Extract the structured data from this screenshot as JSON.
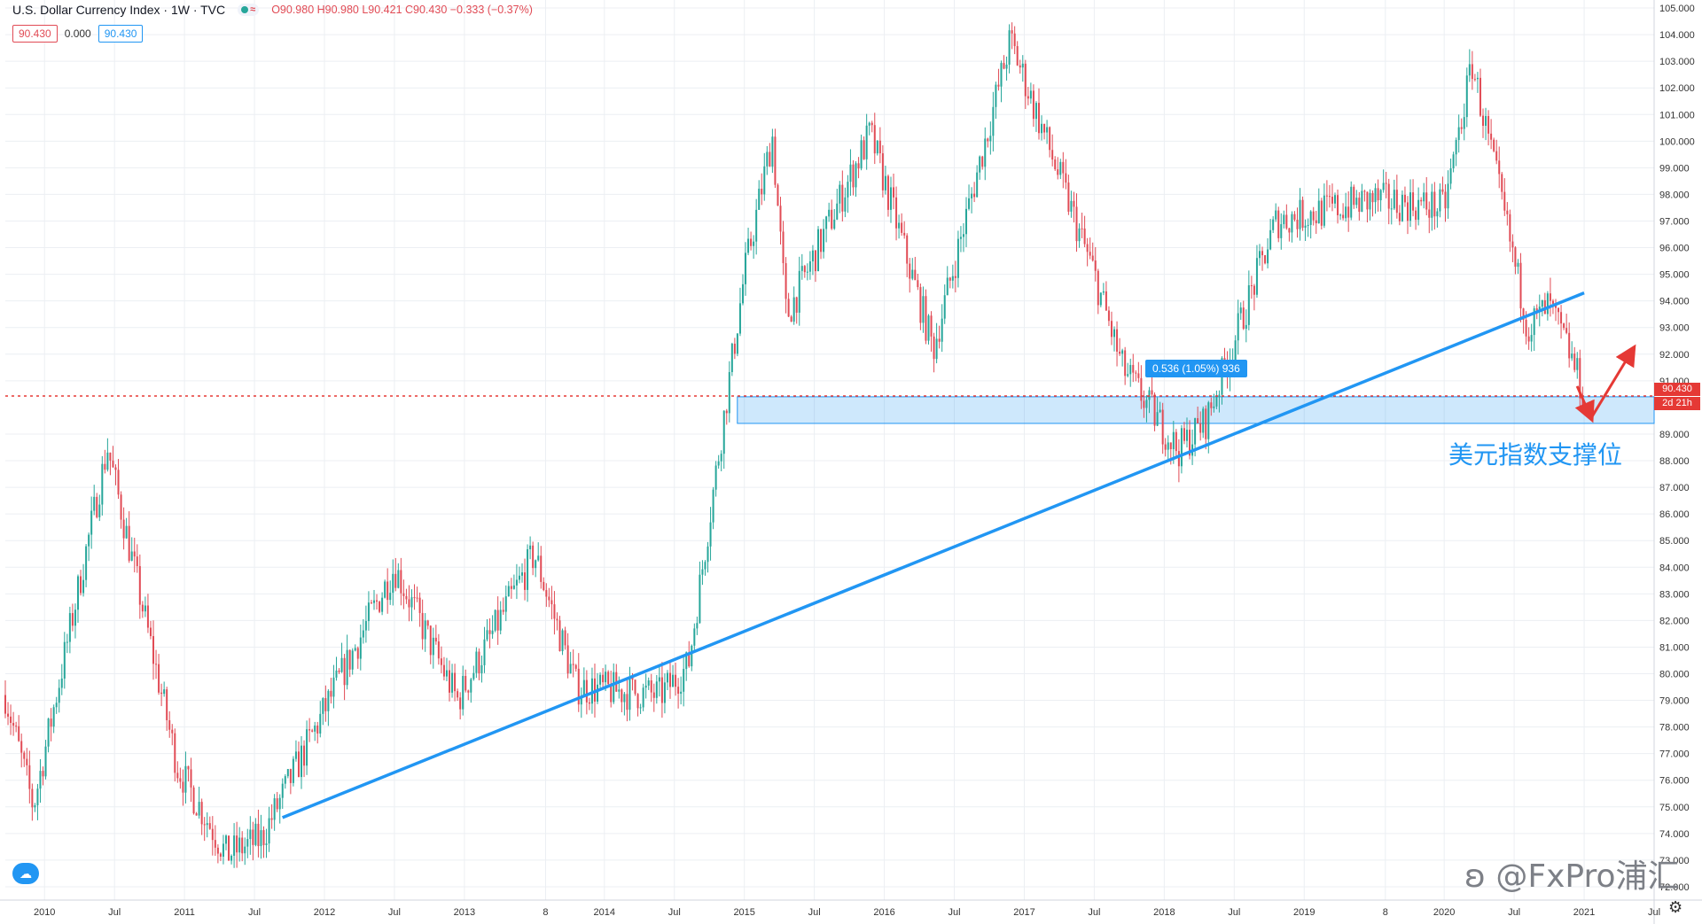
{
  "header": {
    "title": "U.S. Dollar Currency Index · 1W · TVC",
    "ohlc": "O90.980 H90.980 L90.421 C90.430 −0.333 (−0.37%)"
  },
  "values_row": {
    "v1": "90.430",
    "v2": "0.000",
    "v3": "90.430"
  },
  "price_label": "90.430",
  "countdown_label": "2d 21h",
  "measure_tag": "0.536 (1.05%) 936",
  "annotation_text": "美元指数支撑位",
  "watermark": "@FxPro浦汇",
  "colors": {
    "up": "#26a69a",
    "down": "#e14b55",
    "accent": "#2196f3",
    "price_line": "#e53935",
    "grid": "#eceff3"
  },
  "chart_data": {
    "type": "candlestick",
    "title": "U.S. Dollar Currency Index",
    "interval": "1W",
    "source": "TVC",
    "ylim": [
      71.5,
      105.3
    ],
    "y_ticks": [
      "105.000",
      "104.000",
      "103.000",
      "102.000",
      "101.000",
      "100.000",
      "99.000",
      "98.000",
      "97.000",
      "96.000",
      "95.000",
      "94.000",
      "93.000",
      "92.000",
      "91.000",
      "89.000",
      "88.000",
      "87.000",
      "86.000",
      "85.000",
      "84.000",
      "83.000",
      "82.000",
      "81.000",
      "80.000",
      "79.000",
      "78.000",
      "77.000",
      "76.000",
      "75.000",
      "74.000",
      "73.000",
      "72.000"
    ],
    "x_range": [
      2009.72,
      2021.5
    ],
    "x_ticks": [
      {
        "t": 2010.0,
        "label": "2010"
      },
      {
        "t": 2010.5,
        "label": "Jul"
      },
      {
        "t": 2011.0,
        "label": "2011"
      },
      {
        "t": 2011.5,
        "label": "Jul"
      },
      {
        "t": 2012.0,
        "label": "2012"
      },
      {
        "t": 2012.5,
        "label": "Jul"
      },
      {
        "t": 2013.0,
        "label": "2013"
      },
      {
        "t": 2013.58,
        "label": "8"
      },
      {
        "t": 2014.0,
        "label": "2014"
      },
      {
        "t": 2014.5,
        "label": "Jul"
      },
      {
        "t": 2015.0,
        "label": "2015"
      },
      {
        "t": 2015.5,
        "label": "Jul"
      },
      {
        "t": 2016.0,
        "label": "2016"
      },
      {
        "t": 2016.5,
        "label": "Jul"
      },
      {
        "t": 2017.0,
        "label": "2017"
      },
      {
        "t": 2017.5,
        "label": "Jul"
      },
      {
        "t": 2018.0,
        "label": "2018"
      },
      {
        "t": 2018.5,
        "label": "Jul"
      },
      {
        "t": 2019.0,
        "label": "2019"
      },
      {
        "t": 2019.58,
        "label": "8"
      },
      {
        "t": 2020.0,
        "label": "2020"
      },
      {
        "t": 2020.5,
        "label": "Jul"
      },
      {
        "t": 2021.0,
        "label": "2021"
      },
      {
        "t": 2021.5,
        "label": "Jul"
      }
    ],
    "path_points": [
      [
        2009.72,
        79.2
      ],
      [
        2009.92,
        75.0
      ],
      [
        2010.45,
        88.5
      ],
      [
        2010.95,
        76.5
      ],
      [
        2011.3,
        73.2
      ],
      [
        2011.55,
        73.8
      ],
      [
        2012.5,
        84.0
      ],
      [
        2012.95,
        79.0
      ],
      [
        2013.5,
        84.5
      ],
      [
        2013.8,
        79.5
      ],
      [
        2014.4,
        79.2
      ],
      [
        2014.6,
        80.3
      ],
      [
        2015.0,
        95.0
      ],
      [
        2015.2,
        100.2
      ],
      [
        2015.3,
        93.4
      ],
      [
        2015.9,
        100.3
      ],
      [
        2016.35,
        92.2
      ],
      [
        2016.9,
        103.8
      ],
      [
        2017.5,
        95.0
      ],
      [
        2017.7,
        91.5
      ],
      [
        2018.1,
        88.4
      ],
      [
        2018.3,
        89.5
      ],
      [
        2018.8,
        97.0
      ],
      [
        2019.5,
        97.8
      ],
      [
        2020.0,
        97.5
      ],
      [
        2020.2,
        102.9
      ],
      [
        2020.6,
        93.0
      ],
      [
        2020.75,
        93.8
      ],
      [
        2020.9,
        92.0
      ],
      [
        2021.0,
        90.43
      ]
    ],
    "last_close": 90.43,
    "annotations": {
      "trendline": {
        "from": [
          2011.7,
          74.6
        ],
        "to": [
          2021.0,
          94.3
        ]
      },
      "support_zone": {
        "from_t": 2014.95,
        "to_t": 2021.5,
        "low": 89.4,
        "high": 90.4
      },
      "price_line": 90.43,
      "arrows": [
        {
          "from": [
            2020.95,
            90.8
          ],
          "to": [
            2021.05,
            89.6
          ]
        },
        {
          "from": [
            2021.05,
            89.6
          ],
          "to": [
            2021.35,
            92.2
          ]
        }
      ]
    }
  }
}
